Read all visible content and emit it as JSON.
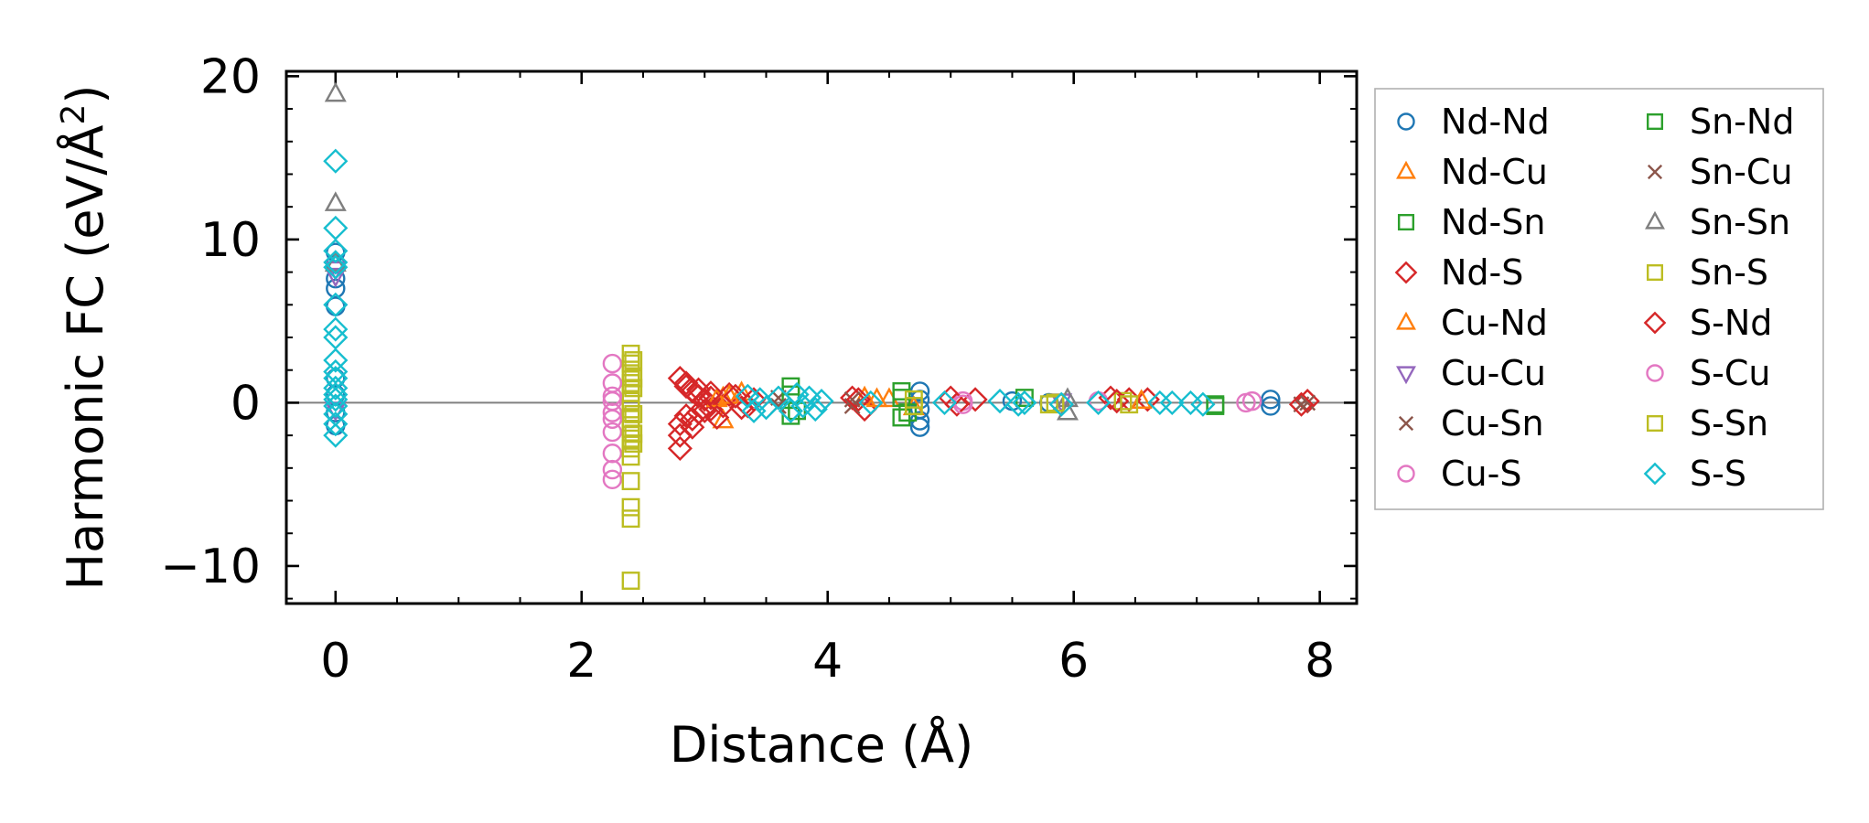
{
  "chart_data": {
    "type": "scatter",
    "title": "",
    "xlabel": "Distance (Å)",
    "ylabel": "Harmonic FC (eV/Å²)",
    "ylabel_parts": {
      "main": "Harmonic FC (eV/Å",
      "sup": "2",
      "tail": ")"
    },
    "xlim": [
      -0.4,
      8.3
    ],
    "ylim": [
      -12.3,
      20.3
    ],
    "xticks": [
      0,
      2,
      4,
      6,
      8
    ],
    "xtick_labels": [
      "0",
      "2",
      "4",
      "6",
      "8"
    ],
    "yticks": [
      -10,
      0,
      10,
      20
    ],
    "ytick_labels": [
      "−10",
      "0",
      "10",
      "20"
    ],
    "x_minor_step": 0.5,
    "y_minor_step": 2,
    "reference_line_y": 0,
    "legend_position": "outside-right",
    "legend_columns": 2,
    "series": [
      {
        "name": "Nd-Nd",
        "marker": "circle",
        "color": "#1f77b4",
        "points": [
          [
            0,
            9.2
          ],
          [
            0,
            8.5
          ],
          [
            0,
            7.6
          ],
          [
            0,
            7.0
          ],
          [
            0,
            5.9
          ],
          [
            0,
            1.5
          ],
          [
            0,
            0.5
          ],
          [
            0,
            -0.6
          ],
          [
            0,
            -1.4
          ],
          [
            4.75,
            0.7
          ],
          [
            4.75,
            0.2
          ],
          [
            4.75,
            -0.4
          ],
          [
            4.75,
            -1.1
          ],
          [
            4.75,
            -1.5
          ],
          [
            5.5,
            0.1
          ],
          [
            5.8,
            0.0
          ],
          [
            7.6,
            0.2
          ],
          [
            7.6,
            -0.2
          ]
        ]
      },
      {
        "name": "Nd-Cu",
        "marker": "triangle-up",
        "color": "#ff7f0e",
        "points": [
          [
            3.15,
            0.3
          ],
          [
            3.15,
            -1.1
          ],
          [
            3.3,
            0.6
          ],
          [
            4.3,
            0.3
          ],
          [
            4.5,
            0.2
          ],
          [
            4.7,
            -0.3
          ]
        ]
      },
      {
        "name": "Nd-Sn",
        "marker": "square",
        "color": "#2ca02c",
        "points": [
          [
            3.7,
            1.0
          ],
          [
            3.7,
            -0.8
          ],
          [
            4.6,
            0.7
          ],
          [
            4.6,
            -0.9
          ],
          [
            5.6,
            0.3
          ],
          [
            7.15,
            -0.2
          ]
        ]
      },
      {
        "name": "Nd-S",
        "marker": "diamond",
        "color": "#d62728",
        "points": [
          [
            2.8,
            1.5
          ],
          [
            2.85,
            1.0
          ],
          [
            2.9,
            0.7
          ],
          [
            2.95,
            0.4
          ],
          [
            3.0,
            0.2
          ],
          [
            3.05,
            0.3
          ],
          [
            2.8,
            -1.3
          ],
          [
            2.8,
            -2.0
          ],
          [
            2.8,
            -2.8
          ],
          [
            2.85,
            -0.8
          ],
          [
            2.9,
            -1.5
          ],
          [
            2.95,
            -0.6
          ],
          [
            3.05,
            -0.4
          ],
          [
            3.15,
            -0.2
          ],
          [
            3.2,
            0.5
          ],
          [
            3.3,
            -0.3
          ],
          [
            3.4,
            0.2
          ],
          [
            4.2,
            0.3
          ],
          [
            4.3,
            -0.4
          ],
          [
            5.0,
            0.3
          ],
          [
            5.2,
            0.2
          ],
          [
            6.3,
            0.3
          ],
          [
            6.45,
            0.2
          ],
          [
            6.6,
            0.2
          ],
          [
            7.9,
            0.1
          ]
        ]
      },
      {
        "name": "Cu-Nd",
        "marker": "triangle-up",
        "color": "#ff7f0e",
        "points": [
          [
            3.1,
            0.2
          ],
          [
            3.2,
            0.4
          ],
          [
            4.4,
            0.2
          ],
          [
            6.55,
            0.1
          ]
        ]
      },
      {
        "name": "Cu-Cu",
        "marker": "triangle-down",
        "color": "#9467bd",
        "points": [
          [
            0,
            8.2
          ],
          [
            0,
            7.8
          ],
          [
            0,
            -0.4
          ],
          [
            5.9,
            0.1
          ]
        ]
      },
      {
        "name": "Cu-Sn",
        "marker": "x",
        "color": "#8c564b",
        "points": [
          [
            3.6,
            0.3
          ],
          [
            4.2,
            -0.2
          ],
          [
            7.9,
            0.0
          ]
        ]
      },
      {
        "name": "Cu-S",
        "marker": "circle",
        "color": "#e377c2",
        "points": [
          [
            2.25,
            2.4
          ],
          [
            2.25,
            0.1
          ],
          [
            2.25,
            -0.6
          ],
          [
            2.25,
            -1.8
          ],
          [
            2.25,
            -3.1
          ],
          [
            2.25,
            -4.1
          ],
          [
            2.25,
            -4.7
          ],
          [
            5.1,
            0.1
          ],
          [
            6.2,
            0.1
          ],
          [
            7.4,
            0.0
          ]
        ]
      },
      {
        "name": "Sn-Nd",
        "marker": "square",
        "color": "#2ca02c",
        "points": [
          [
            3.7,
            0.5
          ],
          [
            3.75,
            -0.5
          ],
          [
            4.6,
            0.3
          ],
          [
            4.65,
            -0.6
          ],
          [
            7.15,
            -0.1
          ]
        ]
      },
      {
        "name": "Sn-Cu",
        "marker": "x",
        "color": "#8c564b",
        "points": [
          [
            3.6,
            -0.2
          ],
          [
            4.2,
            0.2
          ],
          [
            7.85,
            -0.1
          ]
        ]
      },
      {
        "name": "Sn-Sn",
        "marker": "triangle-up",
        "color": "#7f7f7f",
        "points": [
          [
            0,
            18.9
          ],
          [
            0,
            12.2
          ],
          [
            0,
            8.5
          ],
          [
            5.95,
            -0.6
          ],
          [
            5.95,
            0.2
          ]
        ]
      },
      {
        "name": "Sn-S",
        "marker": "square",
        "color": "#bcbd22",
        "points": [
          [
            2.4,
            3.0
          ],
          [
            2.4,
            2.4
          ],
          [
            2.4,
            1.8
          ],
          [
            2.4,
            1.2
          ],
          [
            2.4,
            0.6
          ],
          [
            2.4,
            0.1
          ],
          [
            2.4,
            -0.4
          ],
          [
            2.4,
            -1.0
          ],
          [
            2.4,
            -1.6
          ],
          [
            2.4,
            -2.2
          ],
          [
            2.4,
            -2.8
          ],
          [
            2.4,
            -3.3
          ],
          [
            2.4,
            -4.8
          ],
          [
            2.4,
            -6.4
          ],
          [
            2.4,
            -7.1
          ],
          [
            2.4,
            -10.9
          ],
          [
            4.7,
            0.2
          ],
          [
            5.85,
            0.0
          ],
          [
            6.4,
            0.1
          ]
        ]
      },
      {
        "name": "S-Nd",
        "marker": "diamond",
        "color": "#d62728",
        "points": [
          [
            2.85,
            1.2
          ],
          [
            2.9,
            -1.0
          ],
          [
            2.95,
            0.8
          ],
          [
            3.0,
            -0.5
          ],
          [
            3.05,
            0.6
          ],
          [
            3.1,
            -0.9
          ],
          [
            3.25,
            0.4
          ],
          [
            3.35,
            -0.2
          ],
          [
            4.25,
            0.2
          ],
          [
            5.05,
            -0.1
          ],
          [
            6.35,
            0.1
          ],
          [
            7.85,
            -0.1
          ]
        ]
      },
      {
        "name": "S-Cu",
        "marker": "circle",
        "color": "#e377c2",
        "points": [
          [
            2.25,
            1.2
          ],
          [
            2.25,
            -1.0
          ],
          [
            2.25,
            0.4
          ],
          [
            5.1,
            -0.1
          ],
          [
            7.45,
            0.1
          ]
        ]
      },
      {
        "name": "S-Sn",
        "marker": "square",
        "color": "#bcbd22",
        "points": [
          [
            2.42,
            2.6
          ],
          [
            2.42,
            1.5
          ],
          [
            2.42,
            0.9
          ],
          [
            2.42,
            -0.7
          ],
          [
            2.42,
            -1.9
          ],
          [
            2.42,
            -2.5
          ],
          [
            4.7,
            -0.2
          ],
          [
            5.8,
            -0.1
          ],
          [
            6.45,
            -0.1
          ]
        ]
      },
      {
        "name": "S-S",
        "marker": "diamond",
        "color": "#17becf",
        "points": [
          [
            0,
            14.8
          ],
          [
            0,
            10.7
          ],
          [
            0,
            9.3
          ],
          [
            0,
            8.6
          ],
          [
            0,
            8.3
          ],
          [
            0,
            6.0
          ],
          [
            0,
            4.5
          ],
          [
            0,
            4.0
          ],
          [
            0,
            2.6
          ],
          [
            0,
            1.9
          ],
          [
            0,
            1.5
          ],
          [
            0,
            0.9
          ],
          [
            0,
            0.5
          ],
          [
            0,
            0.2
          ],
          [
            0,
            -0.2
          ],
          [
            0,
            -0.7
          ],
          [
            0,
            -1.3
          ],
          [
            0,
            -2.0
          ],
          [
            3.35,
            0.4
          ],
          [
            3.4,
            -0.5
          ],
          [
            3.45,
            0.2
          ],
          [
            3.5,
            -0.3
          ],
          [
            3.6,
            0.3
          ],
          [
            3.7,
            -0.5
          ],
          [
            3.75,
            0.5
          ],
          [
            3.8,
            -0.2
          ],
          [
            3.85,
            0.3
          ],
          [
            3.9,
            -0.4
          ],
          [
            3.95,
            0.1
          ],
          [
            4.35,
            0.0
          ],
          [
            4.95,
            0.0
          ],
          [
            5.4,
            0.1
          ],
          [
            5.55,
            -0.1
          ],
          [
            5.6,
            0.0
          ],
          [
            5.9,
            -0.1
          ],
          [
            6.2,
            0.0
          ],
          [
            6.7,
            0.0
          ],
          [
            6.8,
            0.0
          ],
          [
            6.95,
            0.0
          ],
          [
            7.05,
            -0.1
          ]
        ]
      }
    ]
  }
}
